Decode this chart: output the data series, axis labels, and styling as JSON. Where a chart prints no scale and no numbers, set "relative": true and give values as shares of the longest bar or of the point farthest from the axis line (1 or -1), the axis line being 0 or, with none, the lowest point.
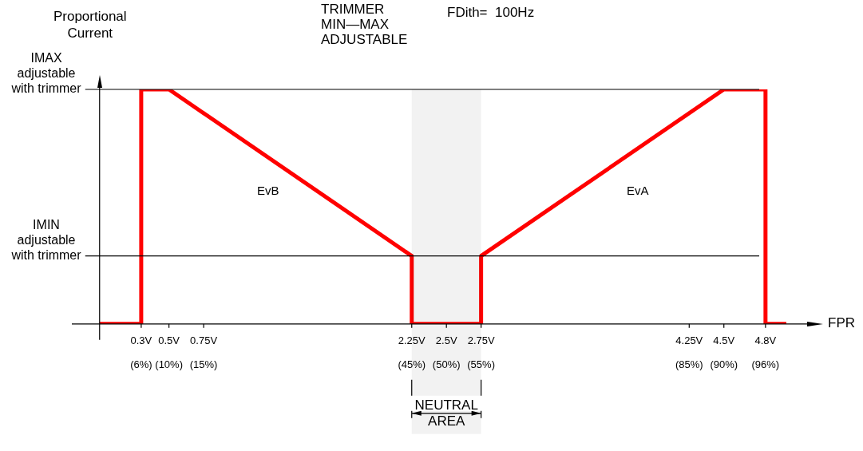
{
  "chart_data": {
    "type": "line",
    "relative": true,
    "ylabel": "Proportional\nCurrent",
    "xlabel": "FPR",
    "xlim": [
      -0.2,
      5.1
    ],
    "xticks": [
      {
        "value": 0.3,
        "label": "0.3V"
      },
      {
        "value": 0.5,
        "label": "0.5V"
      },
      {
        "value": 0.75,
        "label": "0.75V"
      },
      {
        "value": 2.25,
        "label": "2.25V"
      },
      {
        "value": 2.5,
        "label": "2.5V"
      },
      {
        "value": 2.75,
        "label": "2.75V"
      },
      {
        "value": 4.25,
        "label": "4.25V"
      },
      {
        "value": 4.5,
        "label": "4.5V"
      },
      {
        "value": 4.8,
        "label": "4.8V"
      }
    ],
    "x2lim": [
      -4,
      102
    ],
    "x2ticks": [
      {
        "value": 6,
        "label": "(6%)"
      },
      {
        "value": 10,
        "label": "(10%)"
      },
      {
        "value": 15,
        "label": "(15%)"
      },
      {
        "value": 45,
        "label": "(45%)"
      },
      {
        "value": 50,
        "label": "(50%)"
      },
      {
        "value": 55,
        "label": "(55%)"
      },
      {
        "value": 85,
        "label": "(85%)"
      },
      {
        "value": 90,
        "label": "(90%)"
      },
      {
        "value": 96,
        "label": "(96%)"
      }
    ],
    "series": [
      {
        "name": "EvB",
        "color": "#ff0000",
        "x": [
          0,
          0.3,
          0.3,
          0.5,
          2.25,
          2.25
        ],
        "values": [
          0,
          0,
          1,
          1,
          0.29,
          0
        ]
      },
      {
        "name": "EvA",
        "color": "#ff0000",
        "x": [
          2.25,
          2.75,
          2.75,
          4.5,
          4.8,
          4.8,
          4.95
        ],
        "values": [
          0,
          0,
          0.29,
          1,
          1,
          0,
          0
        ]
      }
    ],
    "ref_lines": [
      {
        "axis": "y",
        "value": 1,
        "label": "IMAX\nadjustable\nwith trimmer",
        "color": "#000000"
      },
      {
        "axis": "y",
        "value": 0.29,
        "label": "IMIN\nadjustable\nwith trimmer",
        "color": "#000000"
      }
    ],
    "bands": [
      {
        "axis": "x",
        "from": 2.25,
        "to": 2.75,
        "label": "NEUTRAL\nAREA"
      }
    ],
    "marker": "none",
    "line_style": "solid",
    "annotations": [
      "TRIMMER\nMIN—MAX\nADJUSTABLE",
      "FDith=  100Hz"
    ]
  }
}
